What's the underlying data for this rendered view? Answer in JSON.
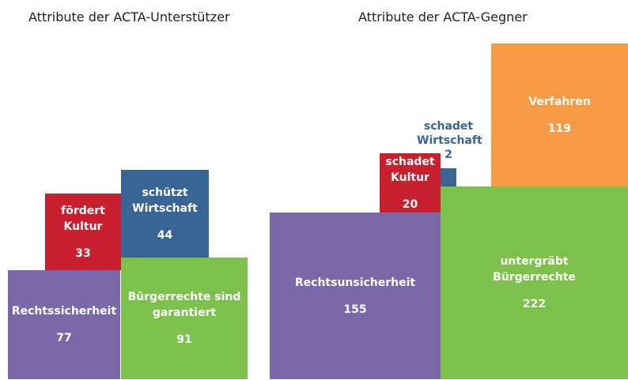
{
  "chart_data": [
    {
      "type": "block",
      "title": "Attribute der ACTA-Unterstützer",
      "categories": [
        "Rechtssicherheit",
        "fördert Kultur",
        "schützt Wirtschaft",
        "Bürgerrechte sind garantiert"
      ],
      "values": [
        77,
        33,
        44,
        91
      ],
      "colors": [
        "#7b68a9",
        "#c8202e",
        "#386595",
        "#7dc04b"
      ]
    },
    {
      "type": "block",
      "title": "Attribute der ACTA-Gegner",
      "categories": [
        "Rechtsunsicherheit",
        "schadet Kultur",
        "schadet Wirtschaft",
        "untergräbt Bürgerrechte",
        "Verfahren"
      ],
      "values": [
        155,
        20,
        2,
        222,
        119
      ],
      "colors": [
        "#7b68a9",
        "#c8202e",
        "#386595",
        "#7dc04b",
        "#f79a45"
      ]
    }
  ]
}
